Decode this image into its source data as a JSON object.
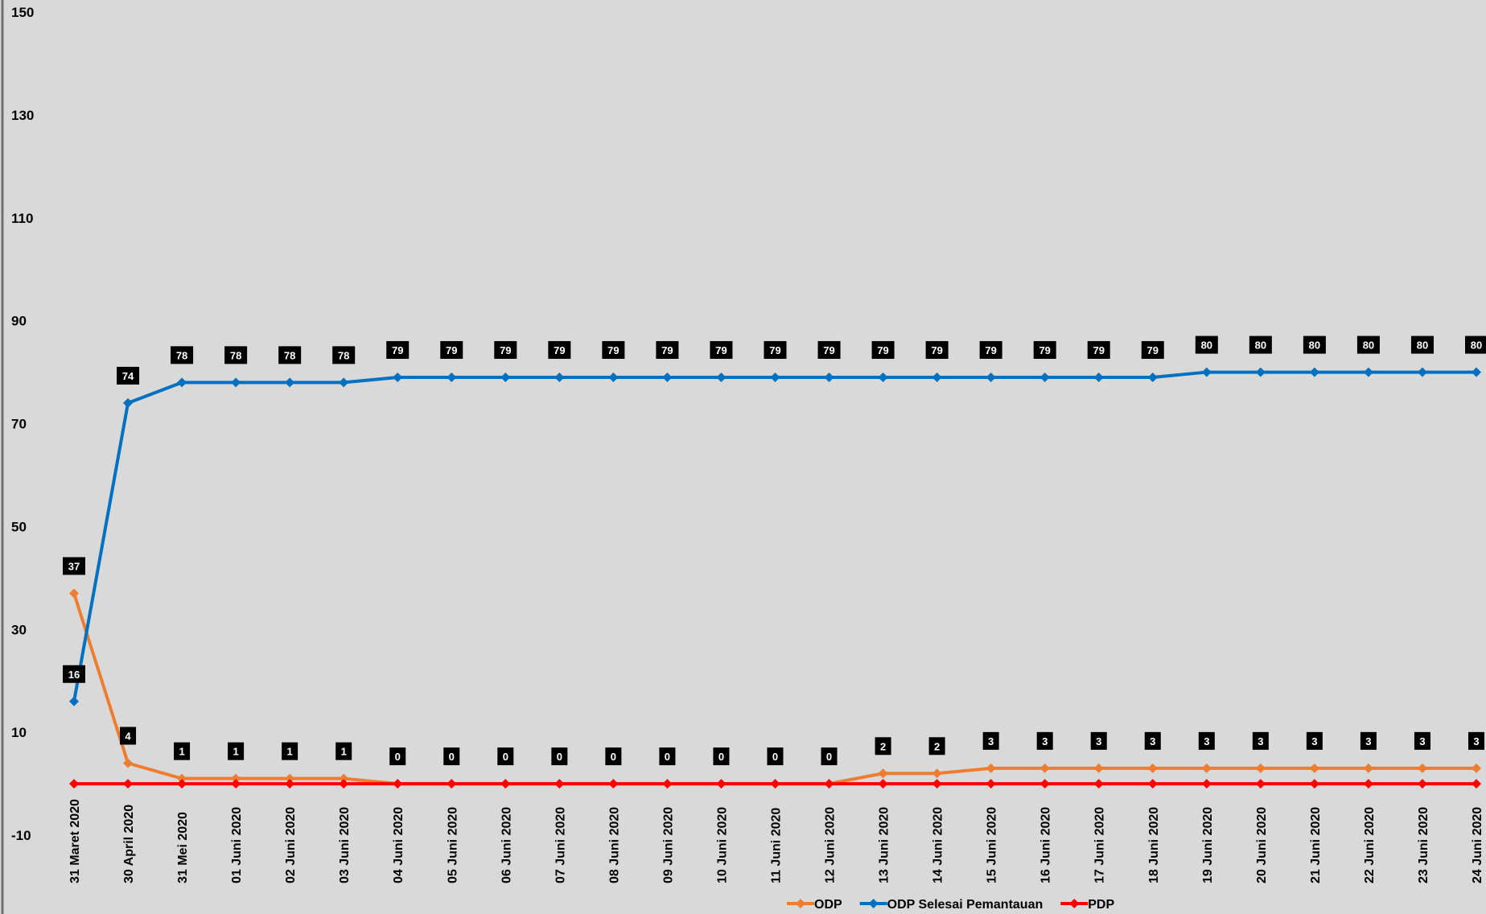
{
  "chart_data": {
    "type": "line",
    "title": "",
    "xlabel": "",
    "ylabel": "",
    "ylim": [
      -10,
      150
    ],
    "yticks": [
      -10,
      10,
      30,
      50,
      70,
      90,
      110,
      130,
      150
    ],
    "grid": false,
    "legend_position": "bottom",
    "categories": [
      "31 Maret 2020",
      "30 April 2020",
      "31 Mei 2020",
      "01 Juni 2020",
      "02 Juni 2020",
      "03 Juni 2020",
      "04 Juni 2020",
      "05 Juni 2020",
      "06 Juni 2020",
      "07 Juni 2020",
      "08 Juni 2020",
      "09 Juni 2020",
      "10 Juni 2020",
      "11 Juni 2020",
      "12 Juni 2020",
      "13 Juni 2020",
      "14 Juni 2020",
      "15 Juni 2020",
      "16 Juni 2020",
      "17 Juni 2020",
      "18 Juni 2020",
      "19 Juni 2020",
      "20 Juni 2020",
      "21 Juni 2020",
      "22 Juni 2020",
      "23 Juni 2020",
      "24 Juni 2020"
    ],
    "series": [
      {
        "name": "ODP",
        "color": "#ed7d31",
        "labels_shown": true,
        "values": [
          37,
          4,
          1,
          1,
          1,
          1,
          0,
          0,
          0,
          0,
          0,
          0,
          0,
          0,
          0,
          2,
          2,
          3,
          3,
          3,
          3,
          3,
          3,
          3,
          3,
          3,
          3
        ]
      },
      {
        "name": "ODP Selesai Pemantauan",
        "color": "#0070c0",
        "labels_shown": true,
        "values": [
          16,
          74,
          78,
          78,
          78,
          78,
          79,
          79,
          79,
          79,
          79,
          79,
          79,
          79,
          79,
          79,
          79,
          79,
          79,
          79,
          79,
          80,
          80,
          80,
          80,
          80,
          80
        ]
      },
      {
        "name": "PDP",
        "color": "#ff0000",
        "labels_shown": false,
        "values": [
          0,
          0,
          0,
          0,
          0,
          0,
          0,
          0,
          0,
          0,
          0,
          0,
          0,
          0,
          0,
          0,
          0,
          0,
          0,
          0,
          0,
          0,
          0,
          0,
          0,
          0,
          0
        ]
      }
    ]
  }
}
